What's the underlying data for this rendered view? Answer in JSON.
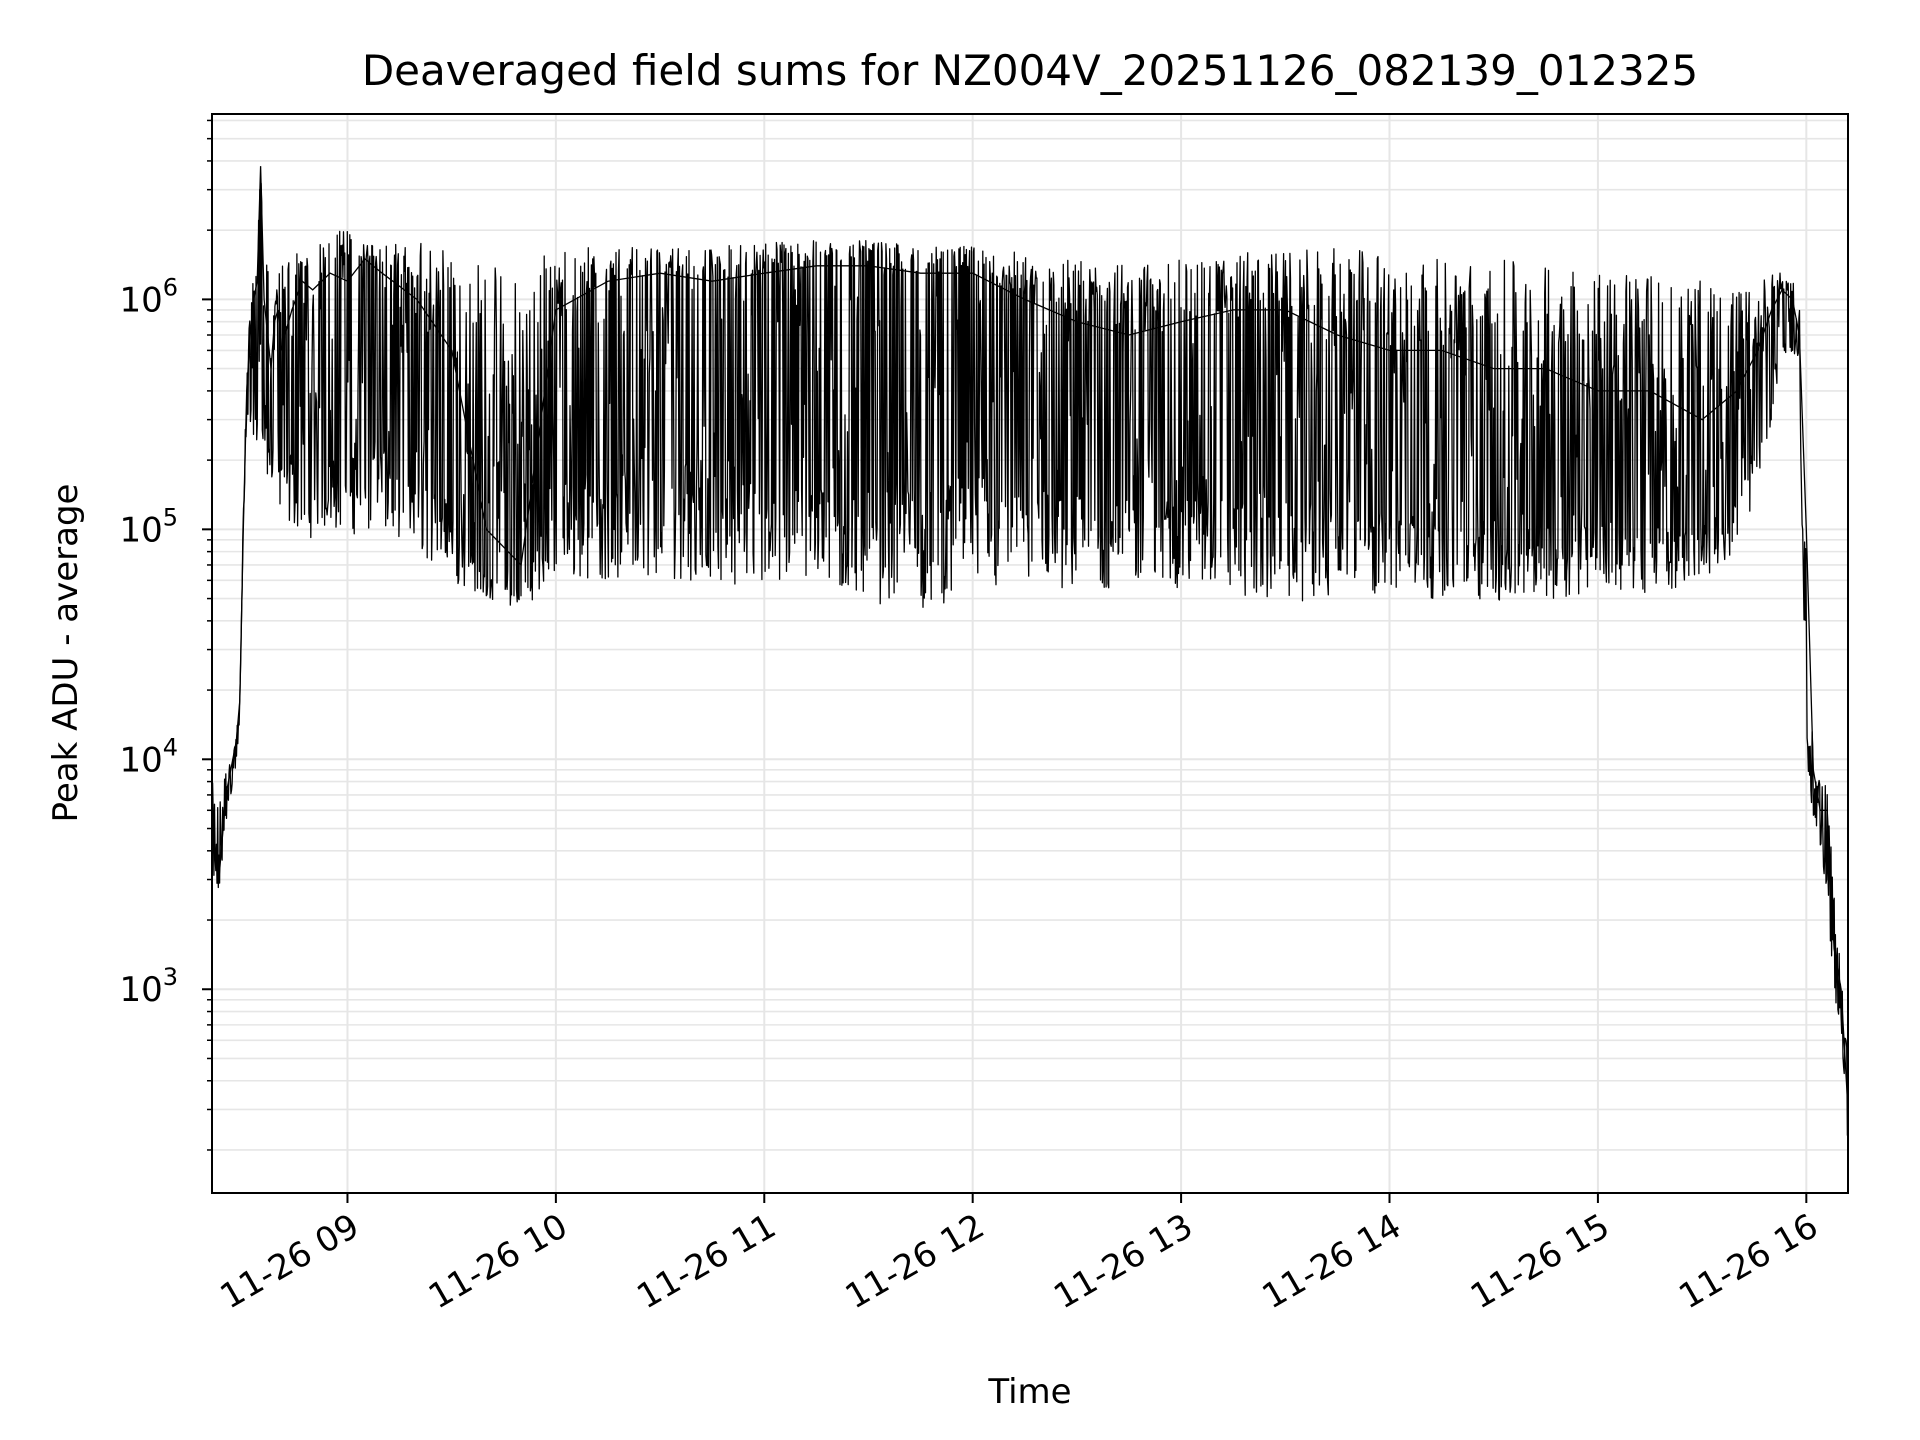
{
  "chart_data": {
    "type": "line",
    "title": "Deaveraged field sums for NZ004V_20251126_082139_012325",
    "xlabel": "Time",
    "ylabel": "Peak ADU - average",
    "yscale": "log",
    "ylim": [
      130,
      6400000
    ],
    "xlim": [
      "2025-11-26 08:21",
      "2025-11-26 16:12"
    ],
    "x_ticks": [
      {
        "label": "11-26 09",
        "time": "2025-11-26 09:00"
      },
      {
        "label": "11-26 10",
        "time": "2025-11-26 10:00"
      },
      {
        "label": "11-26 11",
        "time": "2025-11-26 11:00"
      },
      {
        "label": "11-26 12",
        "time": "2025-11-26 12:00"
      },
      {
        "label": "11-26 13",
        "time": "2025-11-26 13:00"
      },
      {
        "label": "11-26 14",
        "time": "2025-11-26 14:00"
      },
      {
        "label": "11-26 15",
        "time": "2025-11-26 15:00"
      },
      {
        "label": "11-26 16",
        "time": "2025-11-26 16:00"
      }
    ],
    "y_ticks": [
      {
        "base": "10",
        "exp": "3",
        "value": 1000
      },
      {
        "base": "10",
        "exp": "4",
        "value": 10000
      },
      {
        "base": "10",
        "exp": "5",
        "value": 100000
      },
      {
        "base": "10",
        "exp": "6",
        "value": 1000000
      }
    ],
    "grid": true,
    "line_color": "#000000",
    "grid_color": "#e6e6e6",
    "series": [
      {
        "x": [
          "2025-11-26 08:21",
          "2025-11-26 08:23",
          "2025-11-26 08:25",
          "2025-11-26 08:27",
          "2025-11-26 08:28",
          "2025-11-26 08:29",
          "2025-11-26 08:30",
          "2025-11-26 08:31",
          "2025-11-26 08:32",
          "2025-11-26 08:33",
          "2025-11-26 08:34",
          "2025-11-26 08:35",
          "2025-11-26 08:36",
          "2025-11-26 08:37",
          "2025-11-26 08:38",
          "2025-11-26 08:39",
          "2025-11-26 08:40",
          "2025-11-26 08:41",
          "2025-11-26 08:42",
          "2025-11-26 08:44",
          "2025-11-26 08:47",
          "2025-11-26 08:50",
          "2025-11-26 08:55",
          "2025-11-26 09:00",
          "2025-11-26 09:05",
          "2025-11-26 09:10",
          "2025-11-26 09:20",
          "2025-11-26 09:30",
          "2025-11-26 09:40",
          "2025-11-26 09:50",
          "2025-11-26 10:00",
          "2025-11-26 10:15",
          "2025-11-26 10:30",
          "2025-11-26 10:45",
          "2025-11-26 11:00",
          "2025-11-26 11:15",
          "2025-11-26 11:30",
          "2025-11-26 11:45",
          "2025-11-26 12:00",
          "2025-11-26 12:15",
          "2025-11-26 12:30",
          "2025-11-26 12:45",
          "2025-11-26 13:00",
          "2025-11-26 13:15",
          "2025-11-26 13:30",
          "2025-11-26 13:45",
          "2025-11-26 14:00",
          "2025-11-26 14:15",
          "2025-11-26 14:30",
          "2025-11-26 14:45",
          "2025-11-26 15:00",
          "2025-11-26 15:15",
          "2025-11-26 15:30",
          "2025-11-26 15:40",
          "2025-11-26 15:46",
          "2025-11-26 15:50",
          "2025-11-26 15:53",
          "2025-11-26 15:56",
          "2025-11-26 15:58",
          "2025-11-26 16:00",
          "2025-11-26 16:02",
          "2025-11-26 16:04",
          "2025-11-26 16:06",
          "2025-11-26 16:08",
          "2025-11-26 16:10",
          "2025-11-26 16:12"
        ],
        "values": [
          5000,
          3000,
          7000,
          10000,
          12000,
          18000,
          100000,
          400000,
          700000,
          1000000,
          1200000,
          3800000,
          1000000,
          700000,
          500000,
          800000,
          900000,
          600000,
          700000,
          900000,
          1200000,
          1100000,
          1300000,
          1200000,
          1500000,
          1300000,
          1000000,
          600000,
          100000,
          70000,
          900000,
          1200000,
          1300000,
          1200000,
          1300000,
          1400000,
          1400000,
          1300000,
          1300000,
          1000000,
          800000,
          700000,
          800000,
          900000,
          900000,
          700000,
          600000,
          600000,
          500000,
          500000,
          400000,
          400000,
          300000,
          400000,
          600000,
          900000,
          1100000,
          1000000,
          700000,
          100000,
          9000,
          6000,
          6000,
          1500,
          1000,
          300
        ],
        "lower_envelope": [
          2700,
          2700,
          5000,
          8000,
          9000,
          15000,
          100000,
          300000,
          300000,
          200000,
          200000,
          300000,
          200000,
          150000,
          150000,
          200000,
          150000,
          100000,
          100000,
          100000,
          100000,
          90000,
          100000,
          95000,
          95000,
          100000,
          80000,
          60000,
          50000,
          45000,
          60000,
          60000,
          60000,
          60000,
          55000,
          55000,
          48000,
          45000,
          50000,
          55000,
          55000,
          55000,
          55000,
          50000,
          48000,
          50000,
          50000,
          50000,
          48000,
          48000,
          55000,
          52000,
          60000,
          80000,
          150000,
          300000,
          500000,
          600000,
          500000,
          8000,
          5500,
          4000,
          2500,
          900,
          700,
          200
        ],
        "upper_envelope": [
          8000,
          7000,
          9000,
          10000,
          13000,
          18000,
          120000,
          500000,
          900000,
          1300000,
          1600000,
          3800000,
          1500000,
          1400000,
          1000000,
          1200000,
          1300000,
          1400000,
          1500000,
          1600000,
          1700000,
          1700000,
          1800000,
          2200000,
          1800000,
          1700000,
          1800000,
          1700000,
          1600000,
          1500000,
          1700000,
          1700000,
          1700000,
          1700000,
          1800000,
          1800000,
          1800000,
          1700000,
          1700000,
          1600000,
          1500000,
          1400000,
          1500000,
          1600000,
          1600000,
          1700000,
          1600000,
          1500000,
          1500000,
          1400000,
          1400000,
          1300000,
          1200000,
          1100000,
          1200000,
          1300000,
          1300000,
          1200000,
          1000000,
          30000,
          9000,
          8500,
          7500,
          2600,
          1200,
          500
        ]
      }
    ]
  }
}
